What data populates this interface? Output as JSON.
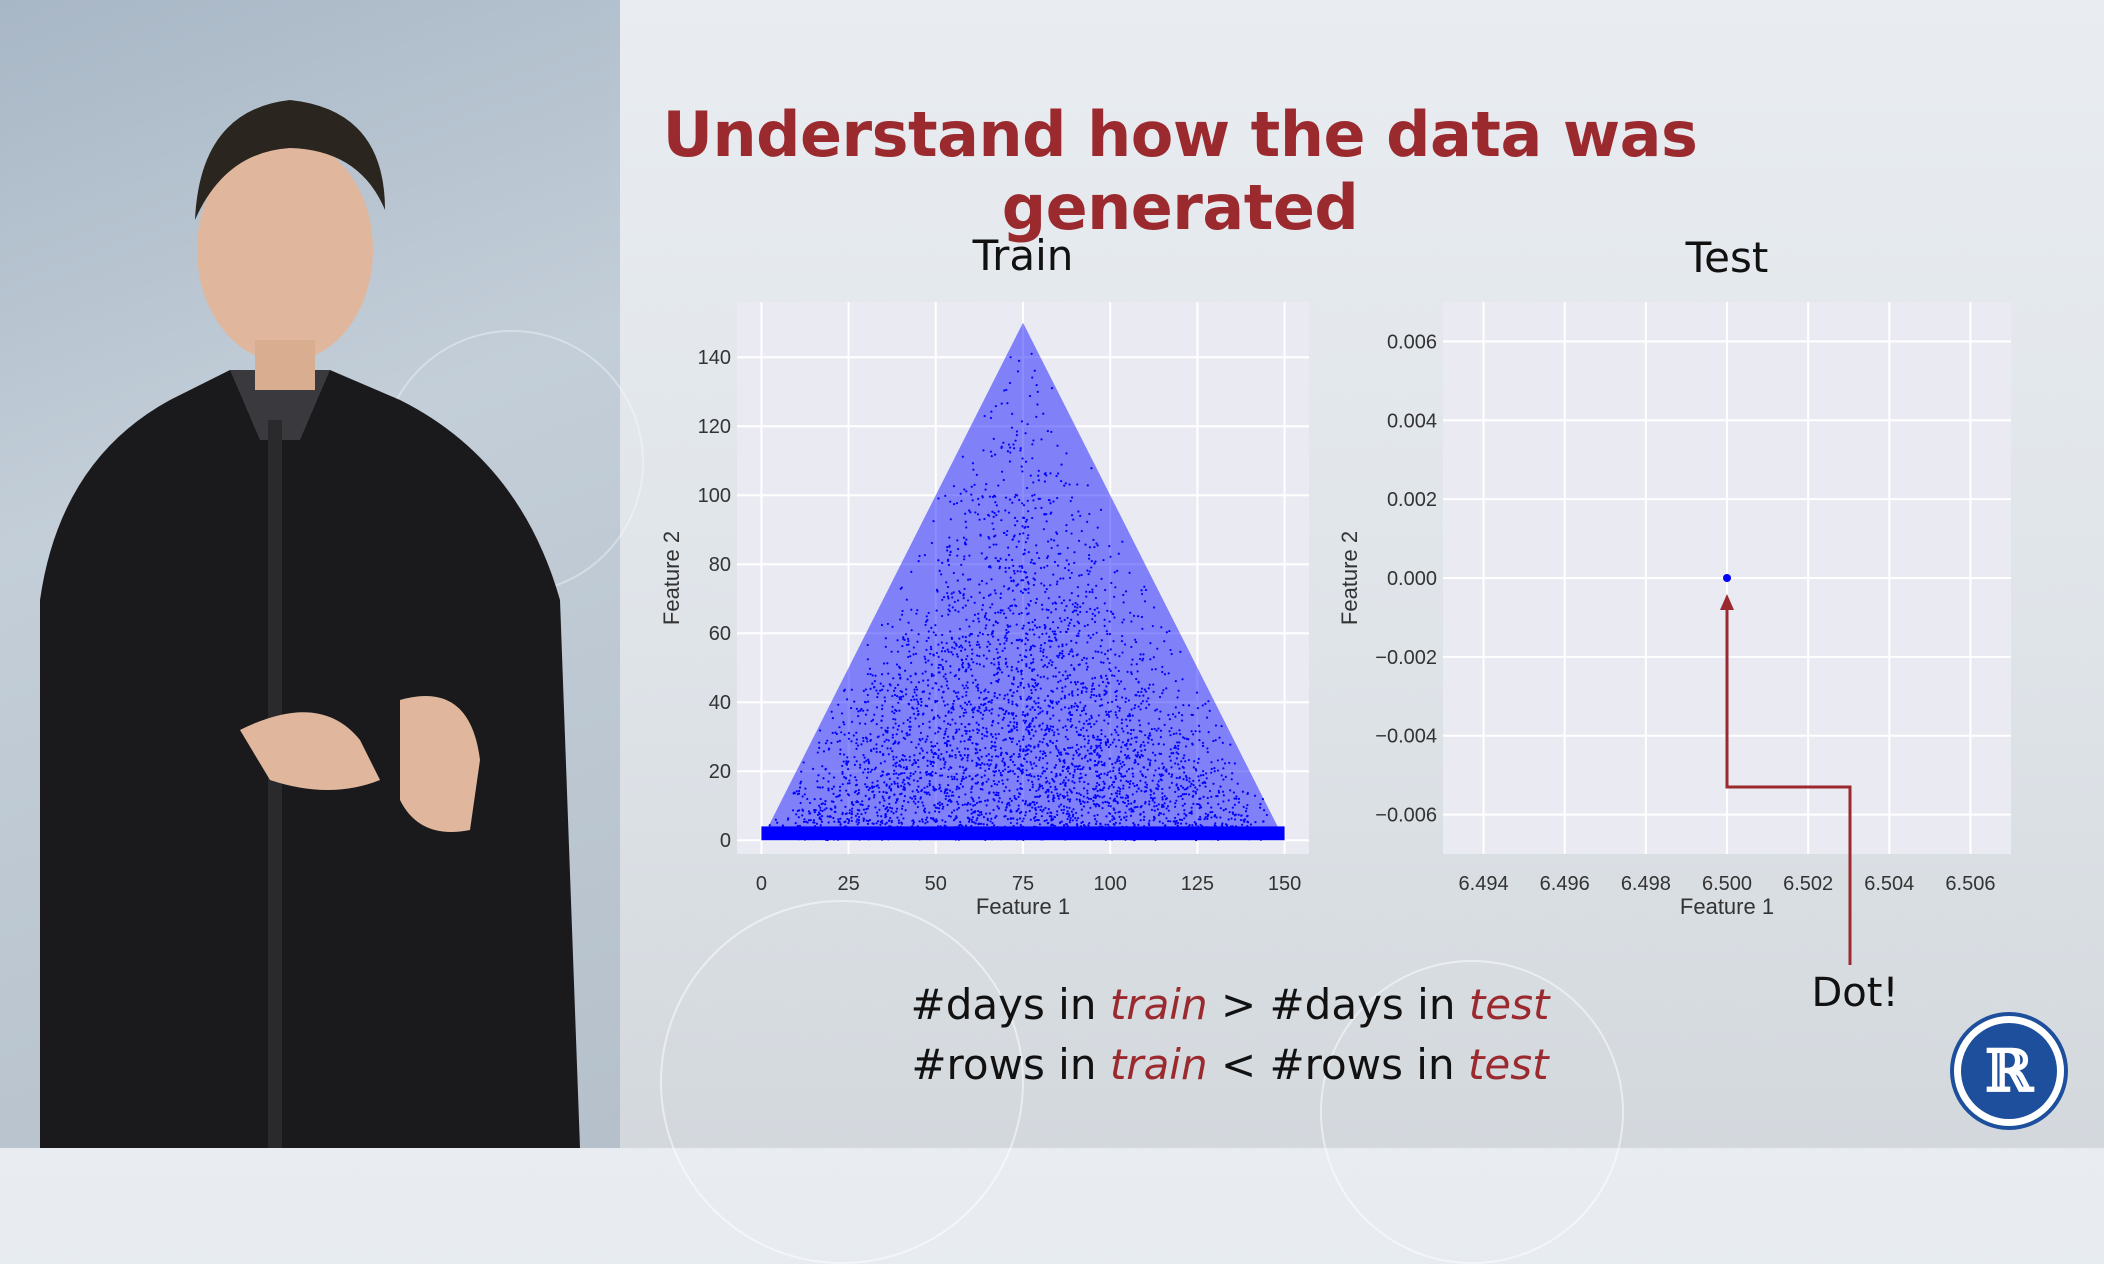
{
  "slide": {
    "title": "Understand how the data was generated"
  },
  "chart_data": [
    {
      "type": "scatter",
      "title": "Train",
      "xlabel": "Feature 1",
      "ylabel": "Feature 2",
      "xlim": [
        -7,
        157
      ],
      "ylim": [
        -4,
        156
      ],
      "xticks": [
        0,
        25,
        50,
        75,
        100,
        125,
        150
      ],
      "yticks": [
        0,
        20,
        40,
        60,
        80,
        100,
        120,
        140
      ],
      "shape": "triangle",
      "vertices": [
        [
          0,
          0
        ],
        [
          75,
          150
        ],
        [
          150,
          0
        ]
      ],
      "point_color": "#0000ff",
      "grid": true
    },
    {
      "type": "scatter",
      "title": "Test",
      "xlabel": "Feature 1",
      "ylabel": "Feature 2",
      "xlim": [
        6.493,
        6.507
      ],
      "ylim": [
        -0.007,
        0.007
      ],
      "xticks": [
        6.494,
        6.496,
        6.498,
        6.5,
        6.502,
        6.504,
        6.506
      ],
      "xtick_labels": [
        "6.494",
        "6.496",
        "6.498",
        "6.500",
        "6.502",
        "6.504",
        "6.506"
      ],
      "yticks": [
        0.006,
        0.004,
        0.002,
        0.0,
        -0.002,
        -0.004,
        -0.006
      ],
      "ytick_labels": [
        "0.006",
        "0.004",
        "0.002",
        "0.000",
        "−0.002",
        "−0.004",
        "−0.006"
      ],
      "points": [
        [
          6.5,
          0.0
        ]
      ],
      "point_color": "#0000ff",
      "grid": true
    }
  ],
  "annotation": {
    "label": "Dot!",
    "color": "#9b2a2f"
  },
  "captions": {
    "line1": {
      "a": "#days in ",
      "b": "train",
      "c": " > #days in ",
      "d": "test"
    },
    "line2": {
      "a": "#rows in ",
      "b": "train",
      "c": " < #rows in ",
      "d": "test"
    }
  },
  "logo": {
    "letter": "ℝ"
  },
  "colors": {
    "accent": "#9b2a2f",
    "plot_bg": "#eaeaf2",
    "grid": "#ffffff",
    "marker": "#0000ff"
  }
}
